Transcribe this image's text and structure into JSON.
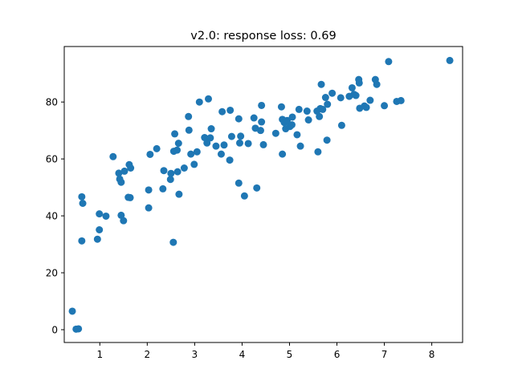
{
  "chart_data": {
    "type": "scatter",
    "title": "v2.0: response loss: 0.69",
    "xlabel": "",
    "ylabel": "",
    "xlim": [
      0.25,
      8.65
    ],
    "ylim": [
      -4.5,
      99.5
    ],
    "x_ticks": [
      1,
      2,
      3,
      4,
      5,
      6,
      7,
      8
    ],
    "y_ticks": [
      0,
      20,
      40,
      60,
      80
    ],
    "grid": false,
    "marker_color": "#1f77b4",
    "points": [
      [
        0.42,
        6.5
      ],
      [
        0.5,
        0.2
      ],
      [
        0.55,
        0.3
      ],
      [
        0.62,
        31.2
      ],
      [
        0.62,
        46.7
      ],
      [
        0.64,
        44.4
      ],
      [
        0.95,
        31.8
      ],
      [
        0.99,
        35.1
      ],
      [
        0.99,
        40.7
      ],
      [
        1.13,
        39.9
      ],
      [
        1.28,
        60.8
      ],
      [
        1.4,
        55.0
      ],
      [
        1.42,
        52.9
      ],
      [
        1.45,
        51.8
      ],
      [
        1.45,
        40.2
      ],
      [
        1.5,
        38.3
      ],
      [
        1.52,
        55.7
      ],
      [
        1.6,
        46.5
      ],
      [
        1.62,
        58.0
      ],
      [
        1.64,
        46.4
      ],
      [
        1.65,
        56.8
      ],
      [
        2.03,
        49.1
      ],
      [
        2.03,
        42.8
      ],
      [
        2.06,
        61.6
      ],
      [
        2.2,
        63.6
      ],
      [
        2.33,
        49.5
      ],
      [
        2.35,
        55.9
      ],
      [
        2.49,
        52.8
      ],
      [
        2.5,
        54.9
      ],
      [
        2.55,
        30.7
      ],
      [
        2.56,
        62.7
      ],
      [
        2.58,
        68.8
      ],
      [
        2.63,
        63.1
      ],
      [
        2.64,
        55.5
      ],
      [
        2.66,
        65.5
      ],
      [
        2.67,
        47.6
      ],
      [
        2.78,
        56.8
      ],
      [
        2.87,
        74.9
      ],
      [
        2.88,
        70.1
      ],
      [
        2.92,
        61.7
      ],
      [
        2.99,
        58.1
      ],
      [
        3.05,
        62.5
      ],
      [
        3.1,
        80.0
      ],
      [
        3.21,
        67.5
      ],
      [
        3.26,
        65.6
      ],
      [
        3.29,
        81.1
      ],
      [
        3.33,
        67.4
      ],
      [
        3.35,
        70.6
      ],
      [
        3.45,
        64.5
      ],
      [
        3.56,
        61.7
      ],
      [
        3.58,
        76.6
      ],
      [
        3.62,
        64.9
      ],
      [
        3.74,
        59.6
      ],
      [
        3.75,
        77.1
      ],
      [
        3.78,
        67.9
      ],
      [
        3.93,
        74.1
      ],
      [
        3.93,
        51.5
      ],
      [
        3.95,
        65.6
      ],
      [
        3.97,
        68.0
      ],
      [
        4.05,
        47.0
      ],
      [
        4.13,
        65.4
      ],
      [
        4.25,
        74.4
      ],
      [
        4.28,
        70.8
      ],
      [
        4.31,
        49.8
      ],
      [
        4.39,
        70.0
      ],
      [
        4.41,
        73.0
      ],
      [
        4.41,
        78.8
      ],
      [
        4.45,
        65.0
      ],
      [
        4.71,
        69.0
      ],
      [
        4.83,
        78.3
      ],
      [
        4.85,
        61.7
      ],
      [
        4.85,
        73.9
      ],
      [
        4.89,
        72.8
      ],
      [
        4.92,
        70.6
      ],
      [
        4.95,
        73.5
      ],
      [
        5.01,
        71.4
      ],
      [
        5.05,
        72.0
      ],
      [
        5.06,
        74.7
      ],
      [
        5.16,
        68.5
      ],
      [
        5.2,
        77.4
      ],
      [
        5.23,
        64.5
      ],
      [
        5.37,
        76.8
      ],
      [
        5.4,
        73.7
      ],
      [
        5.58,
        76.8
      ],
      [
        5.6,
        62.5
      ],
      [
        5.63,
        74.9
      ],
      [
        5.65,
        77.7
      ],
      [
        5.67,
        86.2
      ],
      [
        5.7,
        77.4
      ],
      [
        5.76,
        81.6
      ],
      [
        5.79,
        66.6
      ],
      [
        5.8,
        79.2
      ],
      [
        5.9,
        83.1
      ],
      [
        6.08,
        81.5
      ],
      [
        6.1,
        71.8
      ],
      [
        6.26,
        82.0
      ],
      [
        6.32,
        85.0
      ],
      [
        6.36,
        82.7
      ],
      [
        6.4,
        82.3
      ],
      [
        6.46,
        87.9
      ],
      [
        6.47,
        86.7
      ],
      [
        6.48,
        77.8
      ],
      [
        6.58,
        78.6
      ],
      [
        6.62,
        78.1
      ],
      [
        6.7,
        80.6
      ],
      [
        6.81,
        87.9
      ],
      [
        6.84,
        86.2
      ],
      [
        7.0,
        78.7
      ],
      [
        7.09,
        94.2
      ],
      [
        7.26,
        80.2
      ],
      [
        7.35,
        80.5
      ],
      [
        8.38,
        94.6
      ]
    ]
  }
}
